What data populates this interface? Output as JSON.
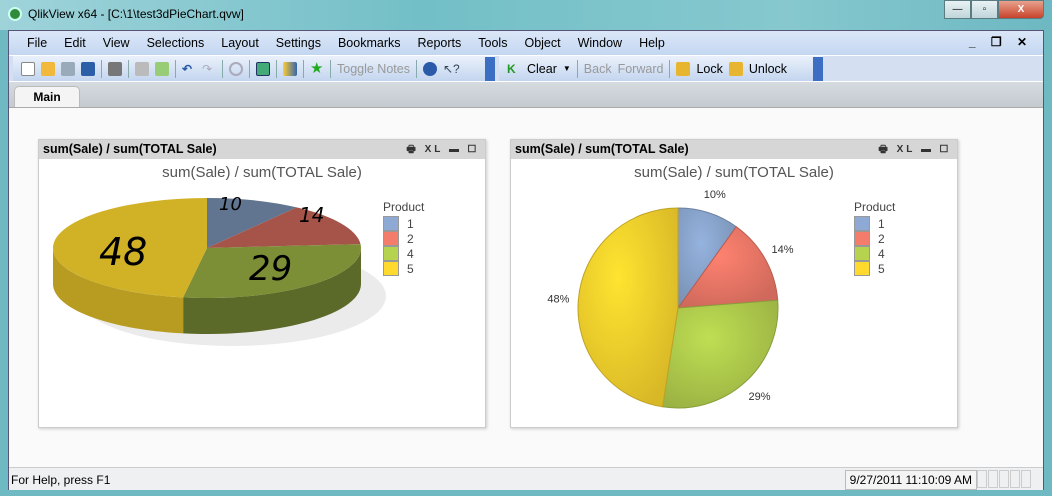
{
  "window": {
    "title": "QlikView x64 - [C:\\1\\test3dPieChart.qvw]",
    "controls": [
      "minimize",
      "maximize",
      "close"
    ]
  },
  "menu": [
    "File",
    "Edit",
    "View",
    "Selections",
    "Layout",
    "Settings",
    "Bookmarks",
    "Reports",
    "Tools",
    "Object",
    "Window",
    "Help"
  ],
  "toolbar": {
    "toggle_notes": "Toggle Notes",
    "clear": "Clear",
    "back": "Back",
    "forward": "Forward",
    "lock": "Lock",
    "unlock": "Unlock"
  },
  "tabs": [
    {
      "label": "Main",
      "active": true
    }
  ],
  "charts": [
    {
      "caption": "sum(Sale) / sum(TOTAL Sale)",
      "title": "sum(Sale) / sum(TOTAL Sale)",
      "style": "3d-pie",
      "legend_title": "Product",
      "handwritten_annotations": [
        "10",
        "14",
        "29",
        "48"
      ]
    },
    {
      "caption": "sum(Sale) / sum(TOTAL Sale)",
      "title": "sum(Sale) / sum(TOTAL Sale)",
      "style": "pie",
      "legend_title": "Product",
      "data_labels": [
        "10%",
        "14%",
        "29%",
        "48%"
      ]
    }
  ],
  "chart_data": {
    "type": "pie",
    "categories": [
      "1",
      "2",
      "4",
      "5"
    ],
    "values": [
      10,
      14,
      29,
      48
    ],
    "unit": "%",
    "colors": [
      "#8eaad4",
      "#f47c6b",
      "#b6d34f",
      "#ffd92e"
    ],
    "legend_title": "Product",
    "legend_placement": "right"
  },
  "status": {
    "help": "For Help, press F1",
    "datetime": "9/27/2011 11:10:09 AM"
  }
}
